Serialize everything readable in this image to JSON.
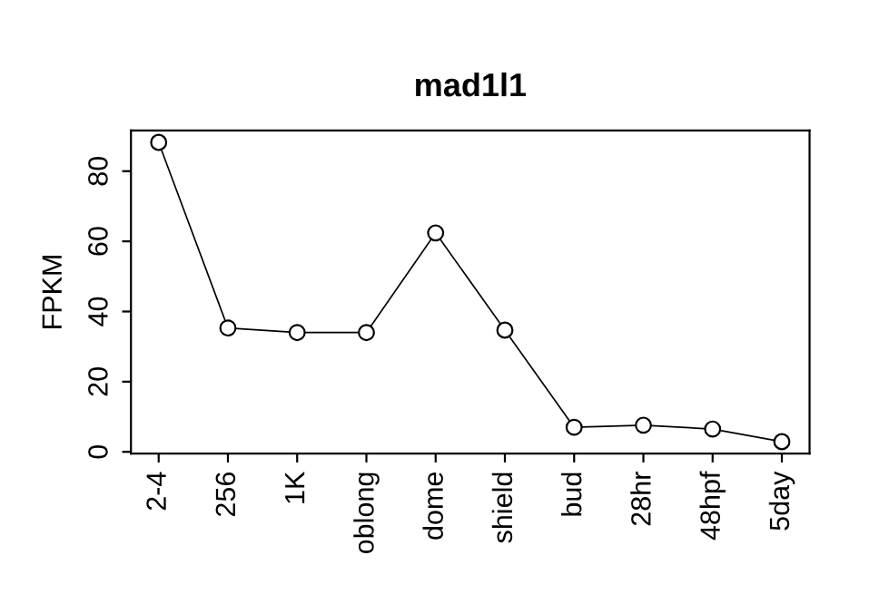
{
  "chart_data": {
    "type": "line",
    "title": "mad1l1",
    "ylabel": "FPKM",
    "categories": [
      "2-4",
      "256",
      "1K",
      "oblong",
      "dome",
      "shield",
      "bud",
      "28hr",
      "48hpf",
      "5day"
    ],
    "series": [
      {
        "color": "#000000",
        "values": [
          88.2,
          35.3,
          34,
          34,
          62.4,
          34.7,
          7,
          7.6,
          6.5,
          2.9
        ]
      }
    ],
    "ylim": [
      -0.5,
      91.6
    ],
    "yticks": [
      0,
      20,
      40,
      60,
      80
    ],
    "marker": "circle",
    "grid": false,
    "legend": false
  }
}
